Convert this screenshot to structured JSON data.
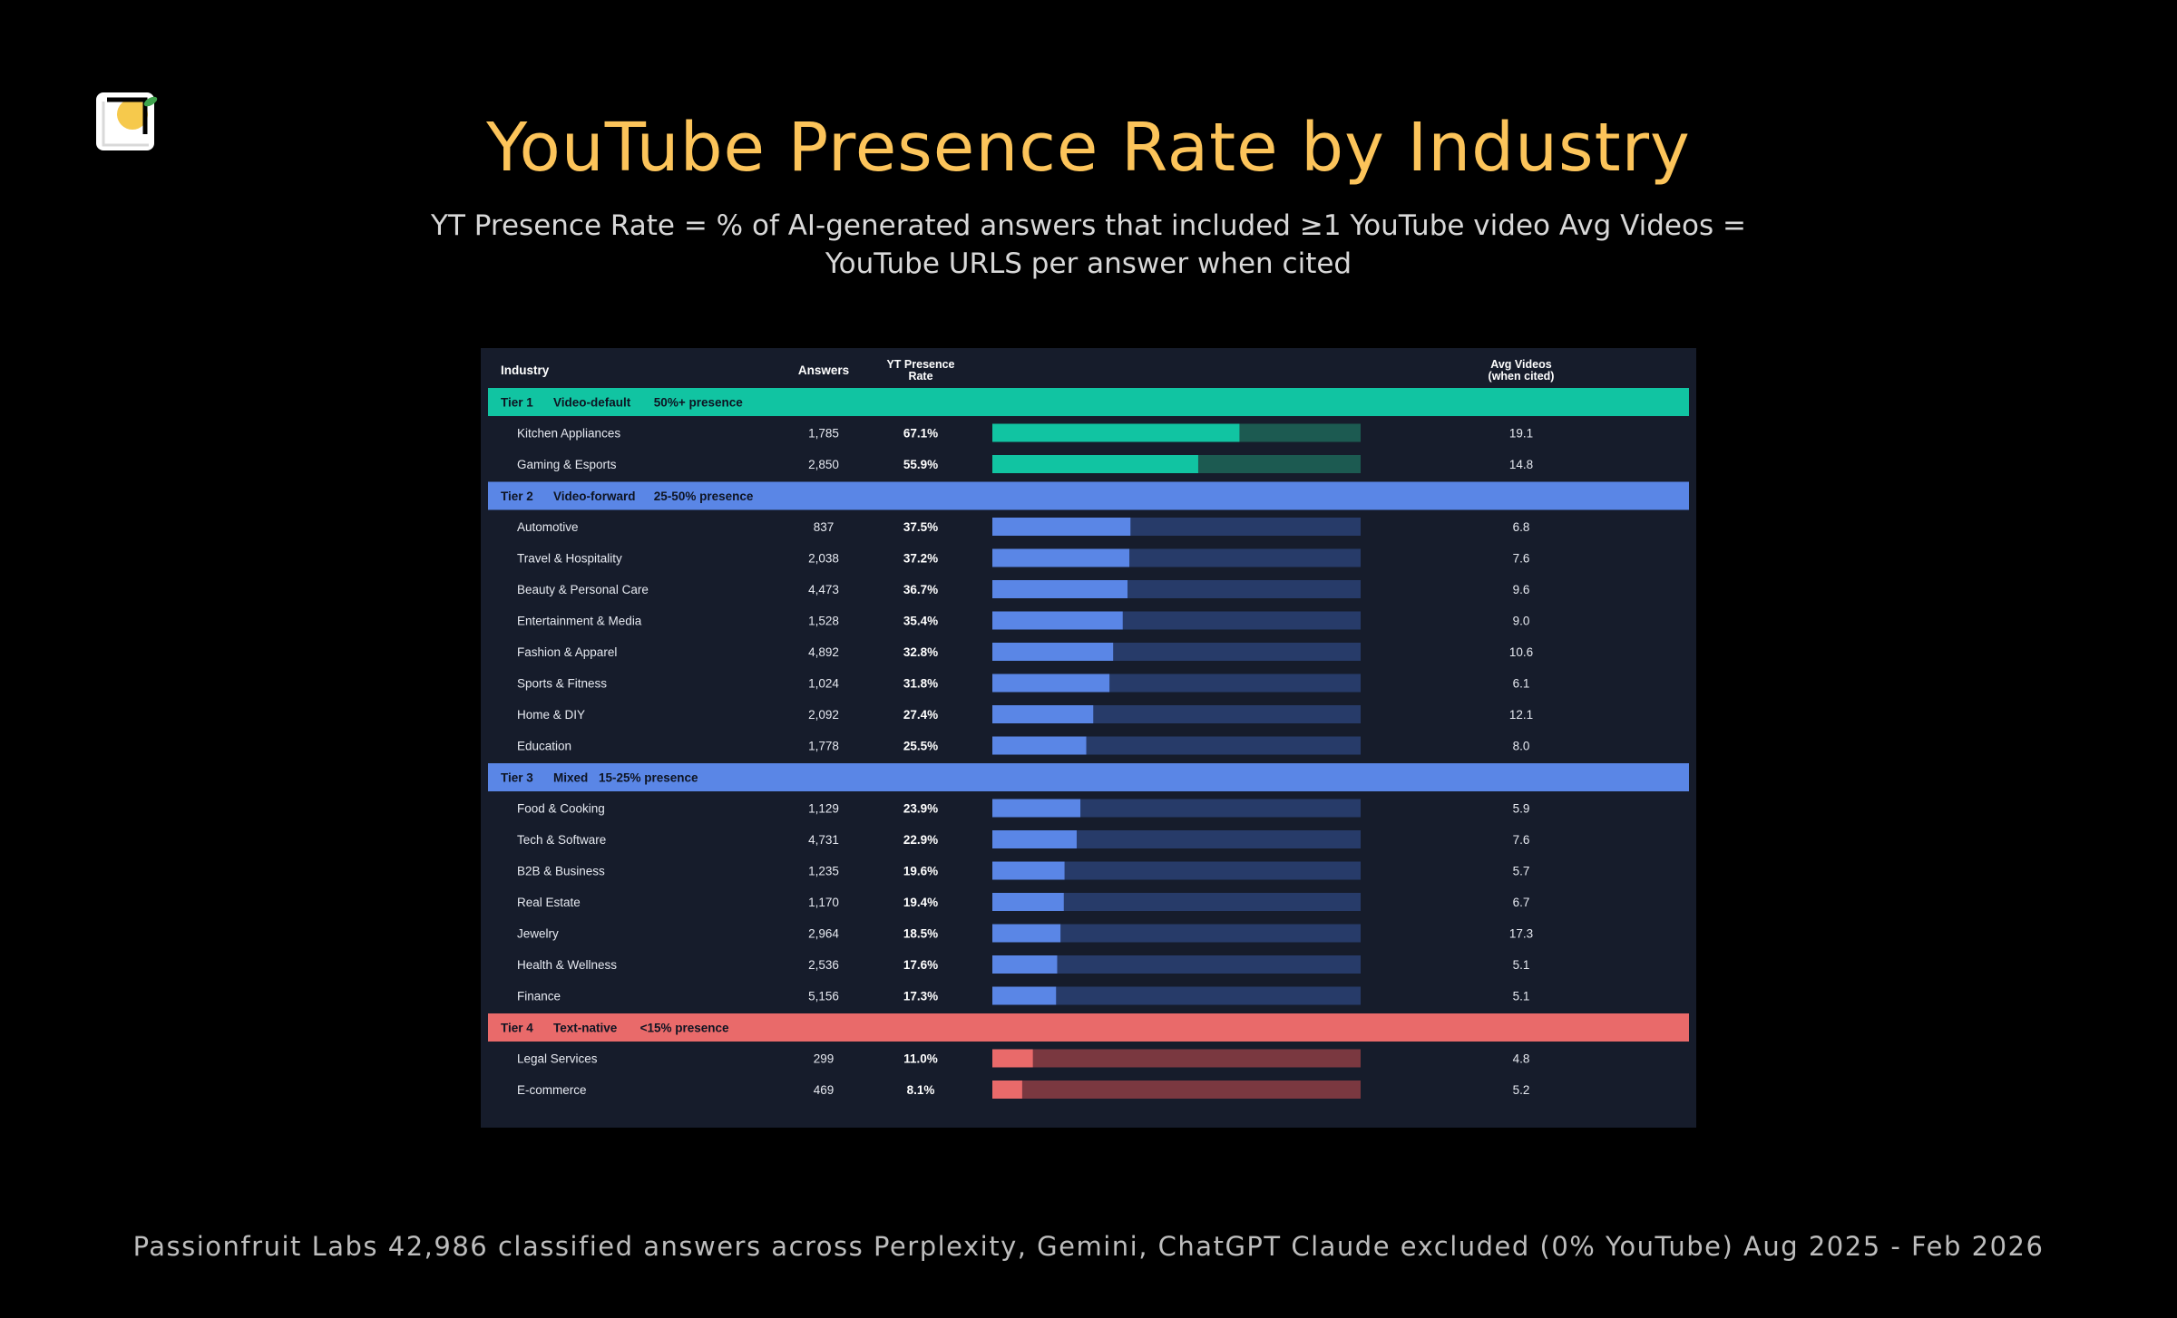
{
  "title": "YouTube Presence Rate by Industry",
  "subtitle": "YT Presence Rate = % of AI-generated answers that included ≥1 YouTube video Avg Videos = YouTube URLS per answer when cited",
  "footer": "Passionfruit Labs 42,986 classified answers across Perplexity, Gemini, ChatGPT Claude excluded (0% YouTube) Aug 2025 - Feb 2026",
  "colors": {
    "accent_title": "#FCC45A",
    "tier1": "#11C4A2",
    "tier2": "#5A86E6",
    "tier3": "#5A86E6",
    "tier4": "#E96A6A"
  },
  "chart_data": {
    "type": "table",
    "headers": {
      "industry": "Industry",
      "answers": "Answers",
      "rate_line1": "YT Presence",
      "rate_line2": "Rate",
      "avg_line1": "Avg Videos",
      "avg_line2": "(when cited)"
    },
    "bar_scale_max": 100,
    "tiers": [
      {
        "name": "Tier 1",
        "label": "Video-default",
        "range": "50%+ presence",
        "color": "#11C4A2",
        "rows": [
          {
            "industry": "Kitchen Appliances",
            "answers": "1,785",
            "rate": 67.1,
            "rate_label": "67.1%",
            "avg": "19.1"
          },
          {
            "industry": "Gaming & Esports",
            "answers": "2,850",
            "rate": 55.9,
            "rate_label": "55.9%",
            "avg": "14.8"
          }
        ]
      },
      {
        "name": "Tier 2",
        "label": "Video-forward",
        "range": "25-50% presence",
        "color": "#5A86E6",
        "rows": [
          {
            "industry": "Automotive",
            "answers": "837",
            "rate": 37.5,
            "rate_label": "37.5%",
            "avg": "6.8"
          },
          {
            "industry": "Travel & Hospitality",
            "answers": "2,038",
            "rate": 37.2,
            "rate_label": "37.2%",
            "avg": "7.6"
          },
          {
            "industry": "Beauty & Personal Care",
            "answers": "4,473",
            "rate": 36.7,
            "rate_label": "36.7%",
            "avg": "9.6"
          },
          {
            "industry": "Entertainment & Media",
            "answers": "1,528",
            "rate": 35.4,
            "rate_label": "35.4%",
            "avg": "9.0"
          },
          {
            "industry": "Fashion & Apparel",
            "answers": "4,892",
            "rate": 32.8,
            "rate_label": "32.8%",
            "avg": "10.6"
          },
          {
            "industry": "Sports & Fitness",
            "answers": "1,024",
            "rate": 31.8,
            "rate_label": "31.8%",
            "avg": "6.1"
          },
          {
            "industry": "Home & DIY",
            "answers": "2,092",
            "rate": 27.4,
            "rate_label": "27.4%",
            "avg": "12.1"
          },
          {
            "industry": "Education",
            "answers": "1,778",
            "rate": 25.5,
            "rate_label": "25.5%",
            "avg": "8.0"
          }
        ]
      },
      {
        "name": "Tier 3",
        "label": "Mixed",
        "range": "15-25% presence",
        "color": "#5A86E6",
        "rows": [
          {
            "industry": "Food & Cooking",
            "answers": "1,129",
            "rate": 23.9,
            "rate_label": "23.9%",
            "avg": "5.9"
          },
          {
            "industry": "Tech & Software",
            "answers": "4,731",
            "rate": 22.9,
            "rate_label": "22.9%",
            "avg": "7.6"
          },
          {
            "industry": "B2B & Business",
            "answers": "1,235",
            "rate": 19.6,
            "rate_label": "19.6%",
            "avg": "5.7"
          },
          {
            "industry": "Real Estate",
            "answers": "1,170",
            "rate": 19.4,
            "rate_label": "19.4%",
            "avg": "6.7"
          },
          {
            "industry": "Jewelry",
            "answers": "2,964",
            "rate": 18.5,
            "rate_label": "18.5%",
            "avg": "17.3"
          },
          {
            "industry": "Health & Wellness",
            "answers": "2,536",
            "rate": 17.6,
            "rate_label": "17.6%",
            "avg": "5.1"
          },
          {
            "industry": "Finance",
            "answers": "5,156",
            "rate": 17.3,
            "rate_label": "17.3%",
            "avg": "5.1"
          }
        ]
      },
      {
        "name": "Tier 4",
        "label": "Text-native",
        "range": "<15% presence",
        "color": "#E96A6A",
        "rows": [
          {
            "industry": "Legal Services",
            "answers": "299",
            "rate": 11.0,
            "rate_label": "11.0%",
            "avg": "4.8"
          },
          {
            "industry": "E-commerce",
            "answers": "469",
            "rate": 8.1,
            "rate_label": "8.1%",
            "avg": "5.2"
          }
        ]
      }
    ]
  }
}
